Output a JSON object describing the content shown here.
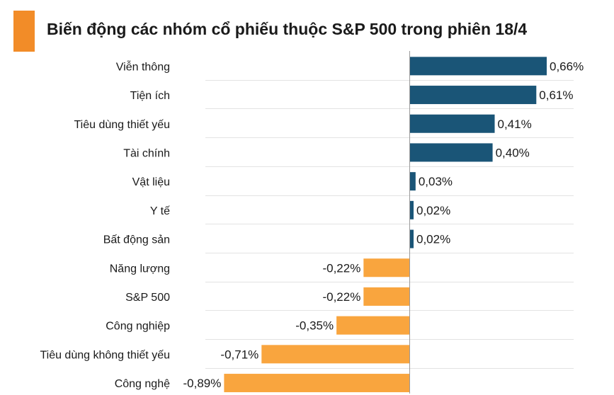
{
  "title": "Biến động các nhóm cổ phiếu thuộc S&P 500 trong phiên 18/4",
  "colors": {
    "positive": "#1a5577",
    "negative": "#f9a53e",
    "accent": "#f28c28",
    "grid": "#e3e3e3"
  },
  "chart_data": {
    "type": "bar",
    "orientation": "horizontal",
    "title": "Biến động các nhóm cổ phiếu thuộc S&P 500 trong phiên 18/4",
    "categories": [
      "Viễn thông",
      "Tiện ích",
      "Tiêu dùng thiết yếu",
      "Tài chính",
      "Vật liệu",
      "Y tế",
      "Bất động sản",
      "Năng lượng",
      "S&P 500",
      "Công nghiệp",
      "Tiêu dùng không thiết yếu",
      "Công nghệ"
    ],
    "values": [
      0.66,
      0.61,
      0.41,
      0.4,
      0.03,
      0.02,
      0.02,
      -0.22,
      -0.22,
      -0.35,
      -0.71,
      -0.89
    ],
    "value_labels": [
      "0,66%",
      "0,61%",
      "0,41%",
      "0,40%",
      "0,03%",
      "0,02%",
      "0,02%",
      "-0,22%",
      "-0,22%",
      "-0,35%",
      "-0,71%",
      "-0,89%"
    ],
    "unit": "%",
    "grid": true,
    "legend": "none"
  }
}
